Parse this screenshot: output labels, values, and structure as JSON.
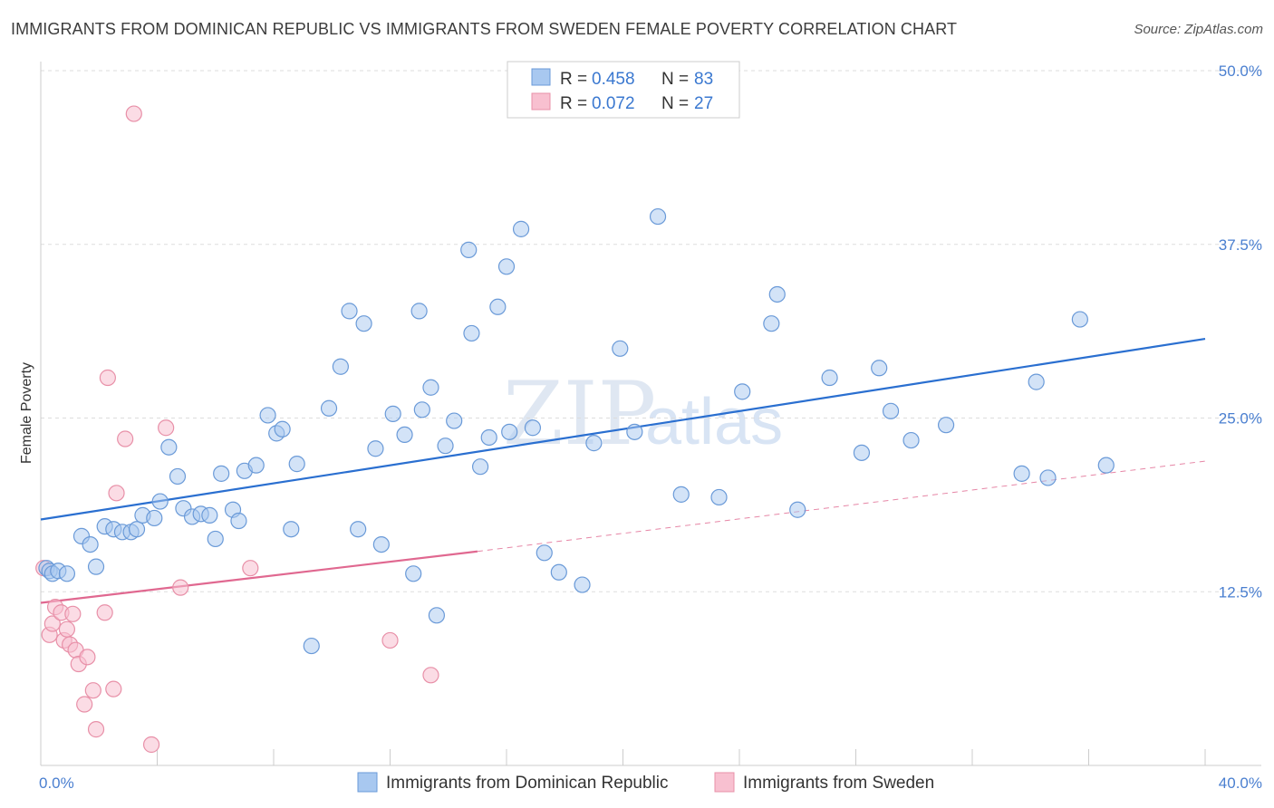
{
  "header": {
    "title": "IMMIGRANTS FROM DOMINICAN REPUBLIC VS IMMIGRANTS FROM SWEDEN FEMALE POVERTY CORRELATION CHART",
    "source": "Source: ZipAtlas.com"
  },
  "watermark": {
    "zip": "ZIP",
    "atlas": "atlas"
  },
  "legend_box": {
    "rows": [
      {
        "r_label": "R =",
        "r_value": "0.458",
        "n_label": "N =",
        "n_value": "83"
      },
      {
        "r_label": "R =",
        "r_value": "0.072",
        "n_label": "N =",
        "n_value": "27"
      }
    ]
  },
  "bottom_legend": {
    "items": [
      "Immigrants from Dominican Republic",
      "Immigrants from Sweden"
    ]
  },
  "colors": {
    "blue_fill": "#a8c8f0",
    "blue_stroke": "#6a9ad8",
    "blue_line": "#2a6fd0",
    "pink_fill": "#f8c0d0",
    "pink_stroke": "#e890a8",
    "pink_line": "#e06890",
    "grid": "#dddddd",
    "tick_text": "#4a7fd0"
  },
  "chart_data": {
    "type": "scatter",
    "title": "IMMIGRANTS FROM DOMINICAN REPUBLIC VS IMMIGRANTS FROM SWEDEN FEMALE POVERTY CORRELATION CHART",
    "xlabel": "",
    "ylabel": "Female Poverty",
    "xlim": [
      0,
      40
    ],
    "ylim": [
      0,
      50
    ],
    "x_tick_labels": [
      "0.0%",
      "40.0%"
    ],
    "y_ticks": [
      12.5,
      25.0,
      37.5,
      50.0
    ],
    "y_tick_labels": [
      "12.5%",
      "25.0%",
      "37.5%",
      "50.0%"
    ],
    "grid": true,
    "legend_position": "top-center",
    "series": [
      {
        "name": "Immigrants from Dominican Republic",
        "R": 0.458,
        "N": 83,
        "trend": {
          "x": [
            0,
            40
          ],
          "y": [
            17.7,
            30.7
          ],
          "style": "solid"
        },
        "points": [
          [
            0.2,
            14.2
          ],
          [
            0.3,
            14.0
          ],
          [
            0.4,
            13.8
          ],
          [
            0.6,
            14.0
          ],
          [
            0.9,
            13.8
          ],
          [
            1.4,
            16.5
          ],
          [
            1.7,
            15.9
          ],
          [
            1.9,
            14.3
          ],
          [
            2.2,
            17.2
          ],
          [
            2.5,
            17.0
          ],
          [
            2.8,
            16.8
          ],
          [
            3.1,
            16.8
          ],
          [
            3.3,
            17.0
          ],
          [
            3.5,
            18.0
          ],
          [
            3.9,
            17.8
          ],
          [
            4.1,
            19.0
          ],
          [
            4.4,
            22.9
          ],
          [
            4.7,
            20.8
          ],
          [
            4.9,
            18.5
          ],
          [
            5.2,
            17.9
          ],
          [
            5.5,
            18.1
          ],
          [
            5.8,
            18.0
          ],
          [
            6.0,
            16.3
          ],
          [
            6.2,
            21.0
          ],
          [
            6.6,
            18.4
          ],
          [
            6.8,
            17.6
          ],
          [
            7.0,
            21.2
          ],
          [
            7.4,
            21.6
          ],
          [
            7.8,
            25.2
          ],
          [
            8.1,
            23.9
          ],
          [
            8.3,
            24.2
          ],
          [
            8.6,
            17.0
          ],
          [
            8.8,
            21.7
          ],
          [
            9.3,
            8.6
          ],
          [
            9.9,
            25.7
          ],
          [
            10.3,
            28.7
          ],
          [
            10.6,
            32.7
          ],
          [
            10.9,
            17.0
          ],
          [
            11.1,
            31.8
          ],
          [
            11.5,
            22.8
          ],
          [
            11.7,
            15.9
          ],
          [
            12.1,
            25.3
          ],
          [
            12.5,
            23.8
          ],
          [
            12.8,
            13.8
          ],
          [
            13.0,
            32.7
          ],
          [
            13.1,
            25.6
          ],
          [
            13.4,
            27.2
          ],
          [
            13.6,
            10.8
          ],
          [
            13.9,
            23.0
          ],
          [
            14.2,
            24.8
          ],
          [
            14.7,
            37.1
          ],
          [
            14.8,
            31.1
          ],
          [
            15.1,
            21.5
          ],
          [
            15.4,
            23.6
          ],
          [
            15.7,
            33.0
          ],
          [
            16.0,
            35.9
          ],
          [
            16.1,
            24.0
          ],
          [
            16.5,
            38.6
          ],
          [
            16.9,
            24.3
          ],
          [
            17.3,
            15.3
          ],
          [
            17.8,
            13.9
          ],
          [
            18.6,
            13.0
          ],
          [
            19.0,
            23.2
          ],
          [
            19.9,
            30.0
          ],
          [
            20.4,
            24.0
          ],
          [
            21.2,
            39.5
          ],
          [
            22.0,
            19.5
          ],
          [
            23.3,
            19.3
          ],
          [
            24.1,
            26.9
          ],
          [
            25.1,
            31.8
          ],
          [
            25.3,
            33.9
          ],
          [
            26.0,
            18.4
          ],
          [
            27.1,
            27.9
          ],
          [
            28.2,
            22.5
          ],
          [
            28.8,
            28.6
          ],
          [
            29.2,
            25.5
          ],
          [
            29.9,
            23.4
          ],
          [
            31.1,
            24.5
          ],
          [
            33.7,
            21.0
          ],
          [
            34.2,
            27.6
          ],
          [
            34.6,
            20.7
          ],
          [
            35.7,
            32.1
          ],
          [
            36.6,
            21.6
          ]
        ]
      },
      {
        "name": "Immigrants from Sweden",
        "R": 0.072,
        "N": 27,
        "trend_solid": {
          "x": [
            0,
            15
          ],
          "y": [
            11.7,
            15.4
          ]
        },
        "trend_dashed": {
          "x": [
            15,
            40
          ],
          "y": [
            15.4,
            21.9
          ]
        },
        "points": [
          [
            0.1,
            14.2
          ],
          [
            0.3,
            9.4
          ],
          [
            0.4,
            10.2
          ],
          [
            0.5,
            11.4
          ],
          [
            0.7,
            11.0
          ],
          [
            0.8,
            9.0
          ],
          [
            0.9,
            9.8
          ],
          [
            1.0,
            8.7
          ],
          [
            1.1,
            10.9
          ],
          [
            1.2,
            8.3
          ],
          [
            1.3,
            7.3
          ],
          [
            1.5,
            4.4
          ],
          [
            1.6,
            7.8
          ],
          [
            1.8,
            5.4
          ],
          [
            1.9,
            2.6
          ],
          [
            2.2,
            11.0
          ],
          [
            2.3,
            27.9
          ],
          [
            2.5,
            5.5
          ],
          [
            2.6,
            19.6
          ],
          [
            2.9,
            23.5
          ],
          [
            3.2,
            46.9
          ],
          [
            3.8,
            1.5
          ],
          [
            4.3,
            24.3
          ],
          [
            4.8,
            12.8
          ],
          [
            7.2,
            14.2
          ],
          [
            12.0,
            9.0
          ],
          [
            13.4,
            6.5
          ]
        ]
      }
    ]
  }
}
